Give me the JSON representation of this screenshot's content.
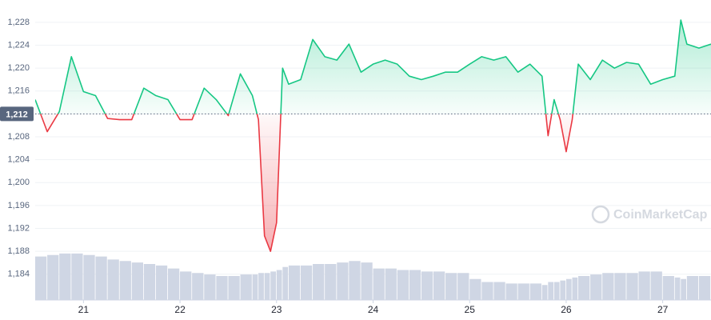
{
  "chart_data": {
    "type": "line",
    "x": [
      20.5,
      20.625,
      20.75,
      20.875,
      21,
      21.125,
      21.25,
      21.375,
      21.5,
      21.625,
      21.75,
      21.875,
      22,
      22.125,
      22.25,
      22.375,
      22.5,
      22.625,
      22.75,
      22.8125,
      22.875,
      22.9375,
      23,
      23.0625,
      23.125,
      23.25,
      23.375,
      23.5,
      23.625,
      23.75,
      23.875,
      24,
      24.125,
      24.25,
      24.375,
      24.5,
      24.625,
      24.75,
      24.875,
      25,
      25.125,
      25.25,
      25.375,
      25.5,
      25.625,
      25.75,
      25.8125,
      25.875,
      25.9375,
      26,
      26.0625,
      26.125,
      26.25,
      26.375,
      26.5,
      26.625,
      26.75,
      26.875,
      27,
      27.125,
      27.1875,
      27.25,
      27.375,
      27.5
    ],
    "values": [
      1214.5,
      1208.9,
      1212.4,
      1222,
      1215.9,
      1215.2,
      1211.2,
      1211,
      1211,
      1216.5,
      1215.2,
      1214.5,
      1211,
      1211,
      1216.5,
      1214.5,
      1211.7,
      1219,
      1215.2,
      1211,
      1190.7,
      1188,
      1193,
      1220,
      1217.2,
      1218,
      1225,
      1222,
      1221.4,
      1224.2,
      1219.3,
      1220.7,
      1221.4,
      1220.7,
      1218.6,
      1218,
      1218.6,
      1219.3,
      1219.3,
      1220.7,
      1222,
      1221.4,
      1222,
      1219.3,
      1220.7,
      1218.6,
      1208.2,
      1214.5,
      1211,
      1205.4,
      1211,
      1220.7,
      1218,
      1221.4,
      1220,
      1221,
      1220.7,
      1217.2,
      1218,
      1218.6,
      1228.4,
      1224.2,
      1223.5,
      1224.2
    ],
    "up_color": "#16c784",
    "down_color": "#ea3943",
    "baseline": {
      "value": 1212,
      "label": "1,212"
    },
    "volume": {
      "axis": "y2",
      "color": "#cfd6e4",
      "values": [
        14.5,
        15,
        15.5,
        15.5,
        15,
        14.5,
        13.5,
        13,
        12.5,
        12,
        11.5,
        10.5,
        9.5,
        9,
        8.5,
        8,
        8,
        8.5,
        8.5,
        9,
        9,
        9.5,
        10,
        11,
        11.5,
        11.5,
        12,
        12,
        12.5,
        13,
        12.5,
        10.5,
        10.5,
        10,
        10,
        9.5,
        9.5,
        9,
        9,
        7,
        6,
        6,
        5.5,
        5.5,
        5.5,
        5,
        6,
        6,
        6.5,
        7,
        7.5,
        8,
        8.5,
        9,
        9,
        9,
        9.5,
        9.5,
        8,
        7.5,
        7,
        8,
        8,
        8
      ]
    },
    "xlim": [
      20.5,
      27.5
    ],
    "xticks": [
      21,
      22,
      23,
      24,
      25,
      26,
      27
    ],
    "ylim": [
      1179.5,
      1231.9
    ],
    "yticks": [
      {
        "value": 1184,
        "label": "1,184"
      },
      {
        "value": 1188,
        "label": "1,188"
      },
      {
        "value": 1192,
        "label": "1,192"
      },
      {
        "value": 1196,
        "label": "1,196"
      },
      {
        "value": 1200,
        "label": "1,200"
      },
      {
        "value": 1204,
        "label": "1,204"
      },
      {
        "value": 1208,
        "label": "1,208"
      },
      {
        "value": 1212,
        "label": "1,212"
      },
      {
        "value": 1216,
        "label": "1,216"
      },
      {
        "value": 1220,
        "label": "1,220"
      },
      {
        "value": 1224,
        "label": "1,224"
      },
      {
        "value": 1228,
        "label": "1,228"
      }
    ],
    "y2lim": [
      0,
      100
    ],
    "grid": true,
    "watermark": "CoinMarketCap"
  }
}
